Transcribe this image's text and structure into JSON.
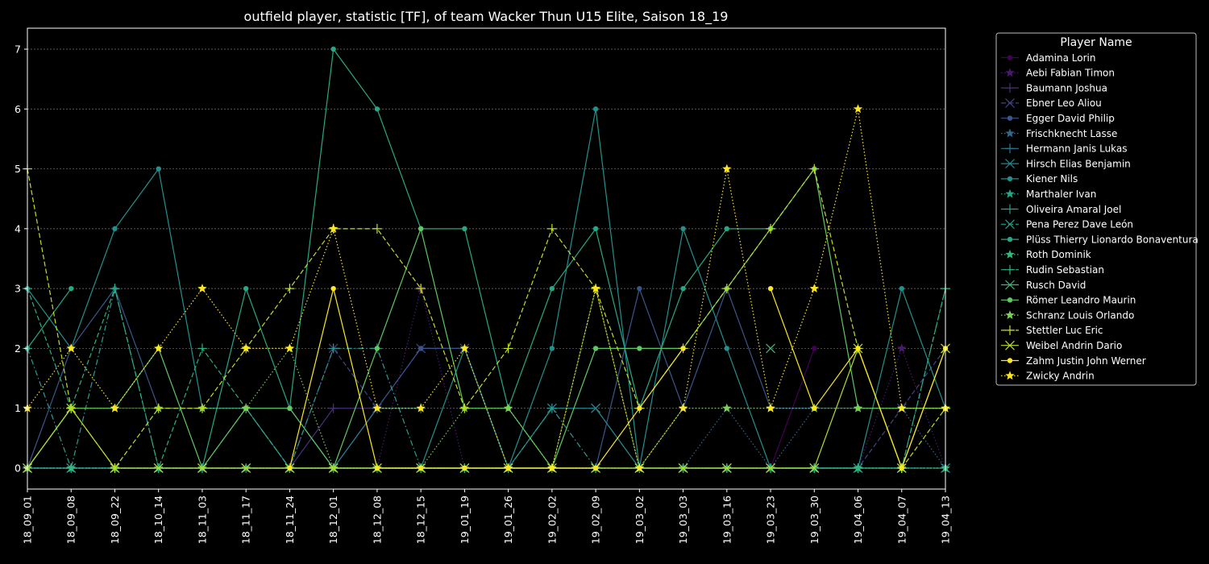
{
  "chart_data": {
    "type": "line",
    "title": "outfield player, statistic [TF], of team Wacker Thun U15 Elite, Saison 18_19",
    "xlabel": "",
    "ylabel": "",
    "ylim": [
      -0.35,
      7.35
    ],
    "yticks": [
      0,
      1,
      2,
      3,
      4,
      5,
      6,
      7
    ],
    "grid": true,
    "legend_title": "Player Name",
    "legend_position": "outside-right",
    "categories": [
      "18_09_01",
      "18_09_08",
      "18_09_22",
      "18_10_14",
      "18_11_03",
      "18_11_17",
      "18_11_24",
      "18_12_01",
      "18_12_08",
      "18_12_15",
      "19_01_19",
      "19_01_26",
      "19_02_02",
      "19_02_09",
      "19_03_02",
      "19_03_03",
      "19_03_16",
      "19_03_23",
      "19_03_30",
      "19_04_06",
      "19_04_07",
      "19_04_13"
    ],
    "series": [
      {
        "name": "Adamina Lorin",
        "color": "#440154",
        "marker": "circle",
        "dash": "solid",
        "values": [
          0,
          0,
          0,
          0,
          0,
          0,
          0,
          0,
          0,
          0,
          0,
          0,
          0,
          0,
          0,
          0,
          0,
          0,
          2,
          null,
          null,
          null
        ]
      },
      {
        "name": "Aebi Fabian Timon",
        "color": "#481a6c",
        "marker": "star",
        "dash": "dotted",
        "values": [
          0,
          0,
          0,
          0,
          0,
          0,
          0,
          0,
          0,
          3,
          0,
          0,
          0,
          0,
          0,
          0,
          0,
          0,
          0,
          0,
          2,
          0
        ]
      },
      {
        "name": "Baumann Joshua",
        "color": "#472f7d",
        "marker": "plus",
        "dash": "solid",
        "values": [
          0,
          0,
          0,
          0,
          0,
          0,
          0,
          1,
          1,
          1,
          null,
          null,
          null,
          null,
          null,
          null,
          null,
          null,
          null,
          null,
          null,
          null
        ]
      },
      {
        "name": "Ebner Leo Aliou",
        "color": "#414487",
        "marker": "x",
        "dash": "dashed",
        "values": [
          0,
          0,
          0,
          0,
          0,
          0,
          0,
          2,
          1,
          2,
          2,
          0,
          1,
          1,
          0,
          0,
          0,
          0,
          0,
          0,
          1,
          2
        ]
      },
      {
        "name": "Egger David Philip",
        "color": "#39568c",
        "marker": "circle",
        "dash": "solid",
        "values": [
          0,
          2,
          3,
          1,
          1,
          1,
          0,
          0,
          1,
          2,
          2,
          0,
          0,
          0,
          3,
          1,
          3,
          1,
          1,
          null,
          null,
          null
        ]
      },
      {
        "name": "Frischknecht Lasse",
        "color": "#31688e",
        "marker": "star",
        "dash": "dotted",
        "values": [
          0,
          0,
          0,
          0,
          0,
          0,
          0,
          0,
          0,
          0,
          0,
          0,
          0,
          0,
          0,
          0,
          1,
          0,
          1,
          1,
          1,
          0
        ]
      },
      {
        "name": "Hermann Janis Lukas",
        "color": "#2a788e",
        "marker": "plus",
        "dash": "solid",
        "values": [
          0,
          0,
          0,
          0,
          0,
          0,
          0,
          0,
          1,
          1,
          null,
          null,
          null,
          null,
          null,
          null,
          null,
          null,
          null,
          null,
          null,
          null
        ]
      },
      {
        "name": "Hirsch Elias Benjamin",
        "color": "#23888e",
        "marker": "x",
        "dash": "solid",
        "values": [
          0,
          0,
          0,
          0,
          0,
          0,
          0,
          0,
          0,
          0,
          0,
          0,
          1,
          1,
          0,
          0,
          0,
          0,
          0,
          0,
          0,
          0
        ]
      },
      {
        "name": "Kiener Nils",
        "color": "#21918c",
        "marker": "circle",
        "dash": "solid",
        "values": [
          3,
          2,
          4,
          5,
          1,
          1,
          1,
          0,
          0,
          0,
          2,
          0,
          2,
          6,
          0,
          4,
          2,
          0,
          0,
          0,
          3,
          1
        ]
      },
      {
        "name": "Marthaler Ivan",
        "color": "#22a884",
        "marker": "star",
        "dash": "dotted",
        "values": [
          0,
          0,
          0,
          0,
          0,
          0,
          0,
          0,
          0,
          0,
          0,
          0,
          0,
          0,
          0,
          0,
          0,
          0,
          0,
          0,
          0,
          0
        ]
      },
      {
        "name": "Oliveira Amaral Joel",
        "color": "#2a9d8f",
        "marker": "plus",
        "dash": "dashdot",
        "values": [
          2,
          0,
          3,
          0,
          0,
          1,
          0,
          2,
          2,
          0,
          0,
          0,
          1,
          0,
          0,
          0,
          0,
          0,
          0,
          0,
          0,
          3
        ]
      },
      {
        "name": "Pena Perez Dave León",
        "color": "#1f9e89",
        "marker": "x",
        "dash": "dashed",
        "values": [
          0,
          0,
          0,
          0,
          0,
          0,
          0,
          0,
          0,
          0,
          0,
          0,
          0,
          0,
          0,
          0,
          0,
          0,
          0,
          0,
          0,
          0
        ]
      },
      {
        "name": "Plüss Thierry Lionardo Bonaventura",
        "color": "#26a885",
        "marker": "circle",
        "dash": "solid",
        "values": [
          2,
          3,
          null,
          null,
          0,
          3,
          1,
          7,
          6,
          4,
          4,
          1,
          3,
          4,
          1,
          3,
          4,
          4,
          null,
          null,
          null,
          null
        ]
      },
      {
        "name": "Roth Dominik",
        "color": "#35b779",
        "marker": "star",
        "dash": "dotted",
        "values": [
          0,
          0,
          0,
          0,
          0,
          0,
          0,
          0,
          0,
          0,
          0,
          0,
          0,
          0,
          0,
          0,
          0,
          0,
          0,
          0,
          0,
          0
        ]
      },
      {
        "name": "Rudin Sebastian",
        "color": "#2bb07f",
        "marker": "plus",
        "dash": "dashed",
        "values": [
          3,
          1,
          3,
          0,
          2,
          1,
          0,
          0,
          0,
          0,
          0,
          0,
          0,
          0,
          0,
          0,
          0,
          0,
          0,
          0,
          0,
          3
        ]
      },
      {
        "name": "Rusch David",
        "color": "#3aba76",
        "marker": "x",
        "dash": "solid",
        "values": [
          null,
          null,
          null,
          null,
          null,
          null,
          null,
          null,
          null,
          null,
          null,
          null,
          null,
          null,
          null,
          null,
          null,
          2,
          null,
          null,
          null,
          null
        ]
      },
      {
        "name": "Römer Leandro Maurin",
        "color": "#5ec962",
        "marker": "circle",
        "dash": "solid",
        "values": [
          0,
          1,
          1,
          2,
          0,
          1,
          1,
          0,
          2,
          4,
          1,
          1,
          0,
          2,
          2,
          2,
          3,
          4,
          5,
          1,
          1,
          1
        ]
      },
      {
        "name": "Schranz Louis Orlando",
        "color": "#7ad151",
        "marker": "star",
        "dash": "dotted",
        "values": [
          0,
          1,
          1,
          1,
          1,
          1,
          2,
          0,
          0,
          0,
          1,
          1,
          0,
          3,
          0,
          1,
          1,
          1,
          1,
          1,
          1,
          1
        ]
      },
      {
        "name": "Stettler Luc Eric",
        "color": "#c2df23",
        "marker": "plus",
        "dash": "dashed",
        "values": [
          5,
          1,
          0,
          1,
          1,
          2,
          3,
          4,
          4,
          3,
          1,
          2,
          4,
          3,
          1,
          2,
          3,
          4,
          5,
          2,
          0,
          1
        ]
      },
      {
        "name": "Weibel Andrin Dario",
        "color": "#b5de2b",
        "marker": "x",
        "dash": "solid",
        "values": [
          0,
          1,
          0,
          0,
          0,
          0,
          0,
          0,
          0,
          0,
          0,
          0,
          0,
          0,
          0,
          0,
          0,
          0,
          0,
          2,
          0,
          2
        ]
      },
      {
        "name": "Zahm Justin John Werner",
        "color": "#fde725",
        "marker": "circle",
        "dash": "solid",
        "values": [
          null,
          null,
          null,
          null,
          null,
          null,
          0,
          3,
          0,
          0,
          0,
          0,
          0,
          0,
          1,
          2,
          null,
          3,
          1,
          2,
          0,
          2
        ]
      },
      {
        "name": "Zwicky Andrin",
        "color": "#fde725",
        "marker": "star",
        "dash": "dotted",
        "values": [
          1,
          2,
          1,
          2,
          3,
          2,
          2,
          4,
          1,
          1,
          2,
          0,
          0,
          3,
          0,
          1,
          5,
          1,
          3,
          6,
          1,
          1
        ]
      }
    ]
  }
}
